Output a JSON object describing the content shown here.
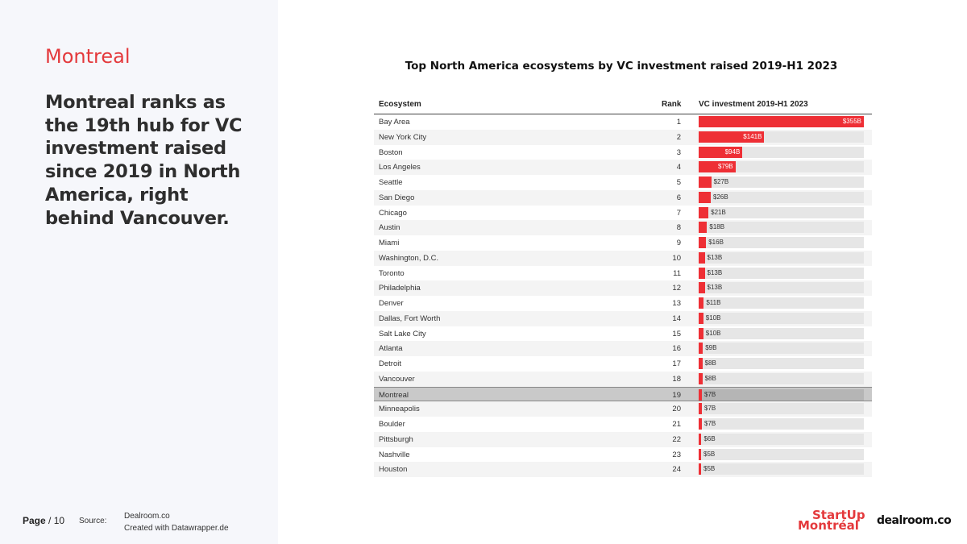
{
  "left_panel": {
    "section": "Montreal",
    "headline": "Montreal ranks as the 19th hub for VC investment raised since 2019 in North America, right behind Vancouver."
  },
  "footer": {
    "page_label": "Page",
    "page_number": "/ 10",
    "source_label": "Source:",
    "source_line1": "Dealroom.co",
    "source_line2": "Created with Datawrapper.de"
  },
  "logos": {
    "startup_line1": "StartUp",
    "startup_line2": "Montréal",
    "dealroom": "dealroom.co"
  },
  "colors": {
    "bar": "#ee2f35",
    "accent": "#e4393c",
    "highlight_row": "#c9c9c9"
  },
  "chart_data": {
    "type": "table",
    "title": "Top North America ecosystems by VC investment raised 2019-H1 2023",
    "columns": [
      "Ecosystem",
      "Rank",
      "VC investment 2019-H1 2023"
    ],
    "unit": "$B",
    "max_value": 355,
    "highlight": "Montreal",
    "rows": [
      {
        "name": "Bay Area",
        "rank": 1,
        "value": 355,
        "label": "$355B"
      },
      {
        "name": "New York City",
        "rank": 2,
        "value": 141,
        "label": "$141B"
      },
      {
        "name": "Boston",
        "rank": 3,
        "value": 94,
        "label": "$94B"
      },
      {
        "name": "Los Angeles",
        "rank": 4,
        "value": 79,
        "label": "$79B"
      },
      {
        "name": "Seattle",
        "rank": 5,
        "value": 27,
        "label": "$27B"
      },
      {
        "name": "San Diego",
        "rank": 6,
        "value": 26,
        "label": "$26B"
      },
      {
        "name": "Chicago",
        "rank": 7,
        "value": 21,
        "label": "$21B"
      },
      {
        "name": "Austin",
        "rank": 8,
        "value": 18,
        "label": "$18B"
      },
      {
        "name": "Miami",
        "rank": 9,
        "value": 16,
        "label": "$16B"
      },
      {
        "name": "Washington, D.C.",
        "rank": 10,
        "value": 13,
        "label": "$13B"
      },
      {
        "name": "Toronto",
        "rank": 11,
        "value": 13,
        "label": "$13B"
      },
      {
        "name": "Philadelphia",
        "rank": 12,
        "value": 13,
        "label": "$13B"
      },
      {
        "name": "Denver",
        "rank": 13,
        "value": 11,
        "label": "$11B"
      },
      {
        "name": "Dallas, Fort Worth",
        "rank": 14,
        "value": 10,
        "label": "$10B"
      },
      {
        "name": "Salt Lake City",
        "rank": 15,
        "value": 10,
        "label": "$10B"
      },
      {
        "name": "Atlanta",
        "rank": 16,
        "value": 9,
        "label": "$9B"
      },
      {
        "name": "Detroit",
        "rank": 17,
        "value": 8,
        "label": "$8B"
      },
      {
        "name": "Vancouver",
        "rank": 18,
        "value": 8,
        "label": "$8B"
      },
      {
        "name": "Montreal",
        "rank": 19,
        "value": 7,
        "label": "$7B"
      },
      {
        "name": "Minneapolis",
        "rank": 20,
        "value": 7,
        "label": "$7B"
      },
      {
        "name": "Boulder",
        "rank": 21,
        "value": 7,
        "label": "$7B"
      },
      {
        "name": "Pittsburgh",
        "rank": 22,
        "value": 6,
        "label": "$6B"
      },
      {
        "name": "Nashville",
        "rank": 23,
        "value": 5,
        "label": "$5B"
      },
      {
        "name": "Houston",
        "rank": 24,
        "value": 5,
        "label": "$5B"
      }
    ]
  }
}
